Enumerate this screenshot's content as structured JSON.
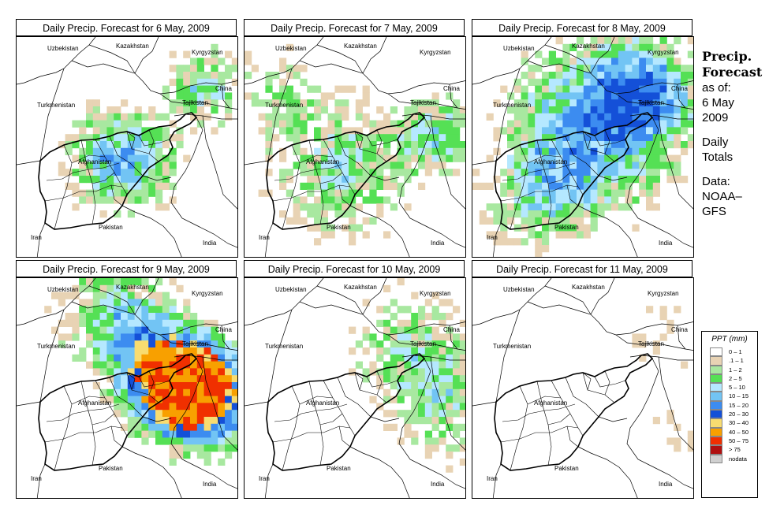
{
  "panels": [
    {
      "title": "Daily Precip. Forecast for  6 May, 2009",
      "intensity": 0.8,
      "seed": 11
    },
    {
      "title": "Daily Precip. Forecast for  7 May, 2009",
      "intensity": 0.75,
      "seed": 23
    },
    {
      "title": "Daily Precip. Forecast for  8 May, 2009",
      "intensity": 0.95,
      "seed": 37
    },
    {
      "title": "Daily Precip. Forecast for  9 May, 2009",
      "intensity": 1.0,
      "seed": 41
    },
    {
      "title": "Daily Precip. Forecast for  10 May, 2009",
      "intensity": 0.6,
      "seed": 53
    },
    {
      "title": "Daily Precip. Forecast for  11 May, 2009",
      "intensity": 0.3,
      "seed": 67
    }
  ],
  "countries": {
    "uzbekistan": "Uzbekistan",
    "kazakhstan": "Kazakhstan",
    "kyrgyzstan": "Kyrgyzstan",
    "china": "China",
    "turkmenistan": "Turkmenistan",
    "tajikistan": "Tajikistan",
    "afghanistan": "Afghanistan",
    "iran": "Iran",
    "pakistan": "Pakistan",
    "india": "India"
  },
  "side": {
    "title_line1": "Precip.",
    "title_line2": "Forecast",
    "asof": "as of:",
    "date_line1": "6 May",
    "date_line2": "2009",
    "daily_line1": "Daily",
    "daily_line2": "Totals",
    "data_line1": "Data:",
    "data_line2": "NOAA–",
    "data_line3": "GFS"
  },
  "legend": {
    "title": "PPT (mm)",
    "items": [
      {
        "label": "0 – 1",
        "color": "#ffffff"
      },
      {
        "label": ".1 – 1",
        "color": "#e8d3b4"
      },
      {
        "label": "1 – 2",
        "color": "#a8e8a0"
      },
      {
        "label": "2 – 5",
        "color": "#55e055"
      },
      {
        "label": "5 – 10",
        "color": "#b5e8ff"
      },
      {
        "label": "10 – 15",
        "color": "#72c4f4"
      },
      {
        "label": "15 – 20",
        "color": "#3c8cf0"
      },
      {
        "label": "20 – 30",
        "color": "#1450d8"
      },
      {
        "label": "30 – 40",
        "color": "#f8dc70"
      },
      {
        "label": "40 – 50",
        "color": "#f8a000"
      },
      {
        "label": "50 – 75",
        "color": "#f03000"
      },
      {
        "label": "> 75",
        "color": "#b01010"
      },
      {
        "label": "nodata",
        "color": "#d0d0d0"
      }
    ]
  }
}
